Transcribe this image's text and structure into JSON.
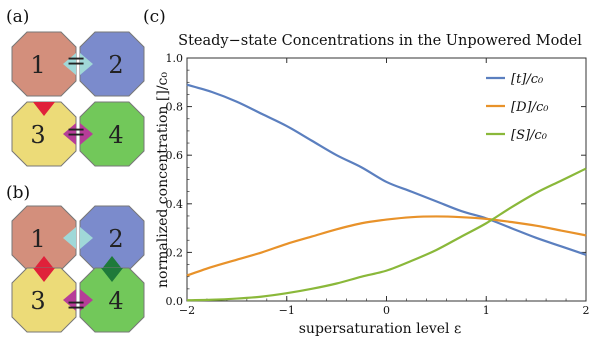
{
  "panels": {
    "a_label": "(a)",
    "b_label": "(b)",
    "c_label": "(c)",
    "a": [
      {
        "num": "1",
        "fill": "#d38f7c",
        "notch_color": "#a0d8d8",
        "bottom": null
      },
      {
        "num": "2",
        "fill": "#7b8bcc",
        "notch_color": "#a0d8d8",
        "bottom": null
      },
      {
        "num": "3",
        "fill": "#ecdb78",
        "notch_color": "#b63d98",
        "top": "#e0213a"
      },
      {
        "num": "4",
        "fill": "#72c85a",
        "notch_color": "#b63d98",
        "top": null
      }
    ],
    "b": [
      {
        "num": "1",
        "fill": "#d38f7c",
        "notch_color": "#a0d8d8",
        "bottom": "#e0213a"
      },
      {
        "num": "2",
        "fill": "#7b8bcc",
        "notch_color": "#a0d8d8",
        "bottom": "#1e7a3a"
      },
      {
        "num": "3",
        "fill": "#ecdb78",
        "notch_color": "#b63d98",
        "top": "#e0213a"
      },
      {
        "num": "4",
        "fill": "#72c85a",
        "notch_color": "#b63d98",
        "top": "#1e7a3a"
      }
    ],
    "a_bond": "="
  },
  "chart_data": {
    "type": "line",
    "title": "Steady−state Concentrations in the Unpowered Model",
    "xlabel": "supersaturation level ε",
    "ylabel": "normalized concentration []/c₀",
    "xlim": [
      -2,
      2
    ],
    "ylim": [
      0,
      1.0
    ],
    "xticks": [
      "−2",
      "−1",
      "0",
      "1",
      "2"
    ],
    "yticks": [
      "0.0",
      "0.2",
      "0.4",
      "0.6",
      "0.8",
      "1.0"
    ],
    "x": [
      -2.0,
      -1.75,
      -1.5,
      -1.25,
      -1.0,
      -0.75,
      -0.5,
      -0.25,
      0.0,
      0.25,
      0.5,
      0.75,
      1.0,
      1.25,
      1.5,
      1.75,
      2.0
    ],
    "series": [
      {
        "name": "[t]/c₀",
        "color": "#5b7fbf",
        "values": [
          0.89,
          0.86,
          0.82,
          0.77,
          0.72,
          0.66,
          0.6,
          0.55,
          0.49,
          0.45,
          0.41,
          0.37,
          0.34,
          0.3,
          0.26,
          0.225,
          0.19
        ]
      },
      {
        "name": "[D]/c₀",
        "color": "#e8922a",
        "values": [
          0.105,
          0.14,
          0.17,
          0.2,
          0.235,
          0.265,
          0.295,
          0.32,
          0.335,
          0.345,
          0.348,
          0.345,
          0.338,
          0.325,
          0.31,
          0.29,
          0.27
        ]
      },
      {
        "name": "[S]/c₀",
        "color": "#8ab83a",
        "values": [
          0.003,
          0.005,
          0.01,
          0.018,
          0.032,
          0.05,
          0.072,
          0.1,
          0.125,
          0.165,
          0.21,
          0.265,
          0.32,
          0.385,
          0.445,
          0.495,
          0.545
        ]
      }
    ],
    "legend_position": "top-right",
    "grid": false
  }
}
